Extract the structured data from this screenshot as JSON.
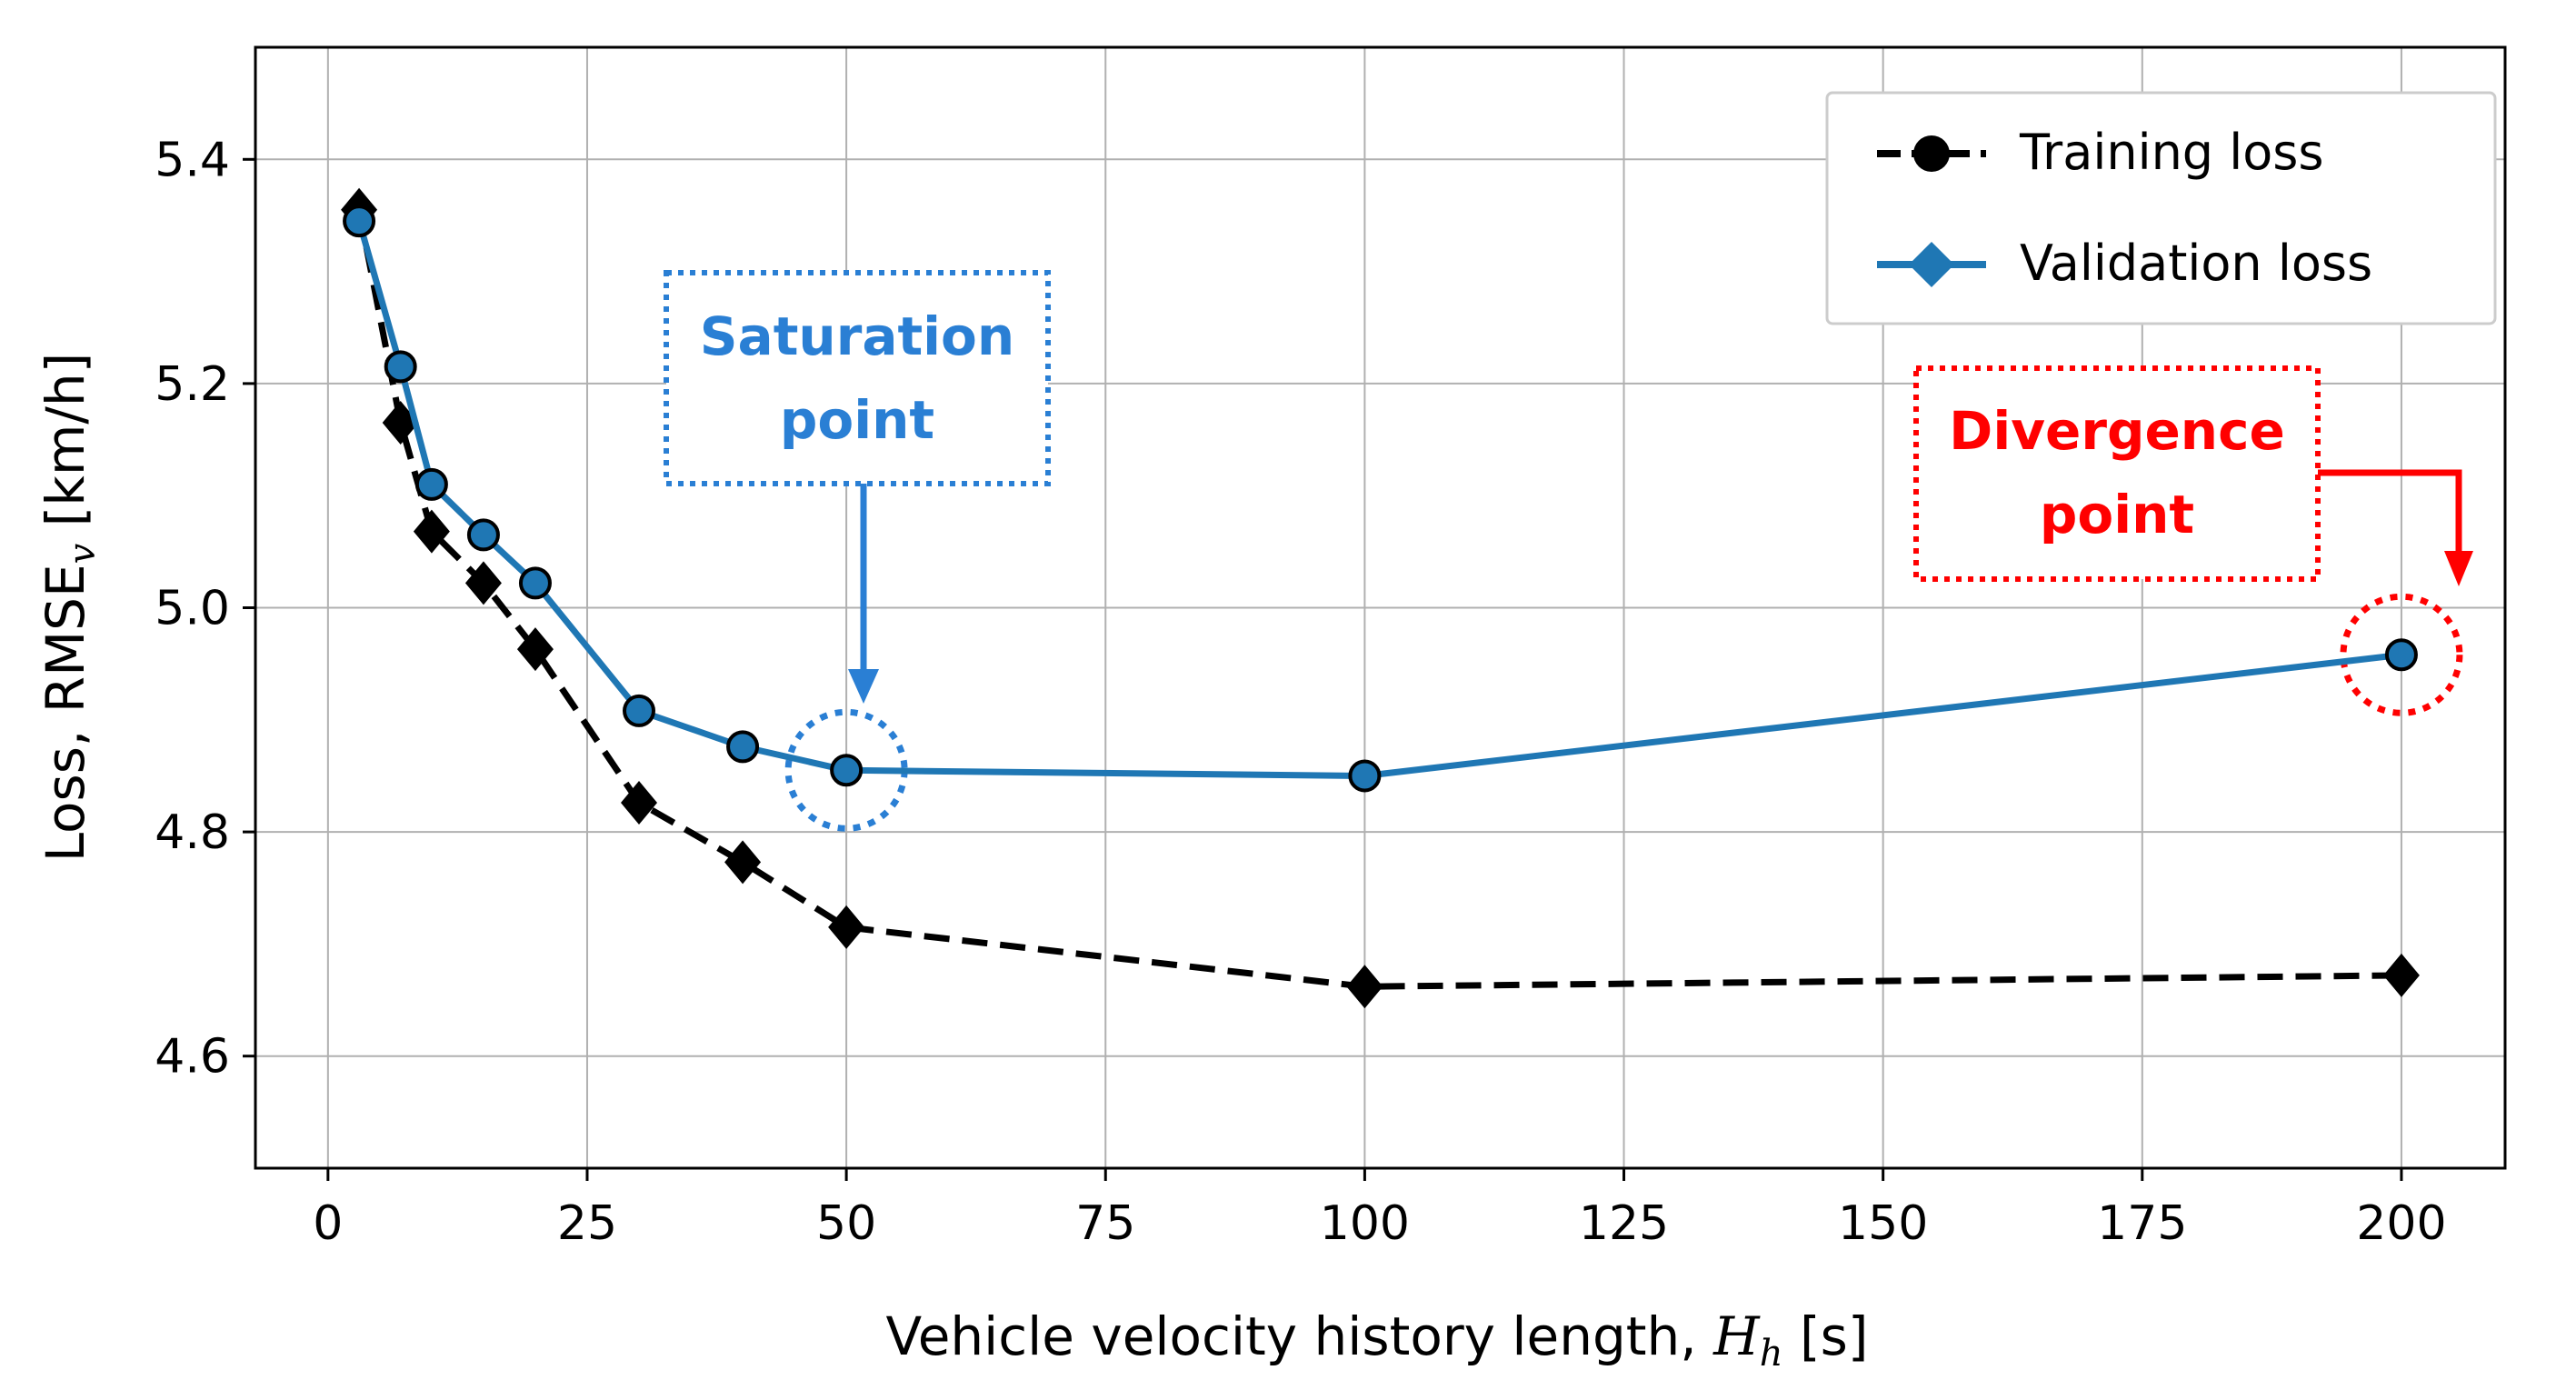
{
  "chart_data": {
    "type": "line",
    "title": "",
    "xlabel": {
      "prefix": "Vehicle velocity history length, ",
      "symbol": "H",
      "subscript": "h",
      "unit": " [s]"
    },
    "ylabel": {
      "prefix": "Loss, RMSE",
      "subscript": "v",
      "unit": " [km/h]"
    },
    "xlim": [
      -7,
      210
    ],
    "ylim": [
      4.5,
      5.5
    ],
    "xticks": [
      0,
      25,
      50,
      75,
      100,
      125,
      150,
      175,
      200
    ],
    "yticks": [
      4.6,
      4.8,
      5.0,
      5.2,
      5.4
    ],
    "grid": true,
    "legend_position": "top-right",
    "series": [
      {
        "name": "Training loss",
        "legend_marker": "circle",
        "line_style": "dashed",
        "color": "#000000",
        "plot_marker": "diamond",
        "x": [
          3,
          7,
          10,
          15,
          20,
          30,
          40,
          50,
          100,
          200
        ],
        "values": [
          5.355,
          5.165,
          5.068,
          5.022,
          4.963,
          4.826,
          4.773,
          4.715,
          4.662,
          4.672
        ]
      },
      {
        "name": "Validation loss",
        "legend_marker": "diamond",
        "line_style": "solid",
        "color": "#1f77b4",
        "plot_marker": "circle",
        "x": [
          3,
          7,
          10,
          15,
          20,
          30,
          40,
          50,
          100,
          200
        ],
        "values": [
          5.345,
          5.215,
          5.11,
          5.065,
          5.022,
          4.908,
          4.876,
          4.855,
          4.85,
          4.958
        ]
      }
    ],
    "annotations": [
      {
        "name": "saturation",
        "lines": [
          "Saturation",
          "point"
        ],
        "color": "#2a7fd4",
        "target_x": 50,
        "target_y": 4.855
      },
      {
        "name": "divergence",
        "lines": [
          "Divergence",
          "point"
        ],
        "color": "#ff0000",
        "target_x": 200,
        "target_y": 4.958
      }
    ]
  }
}
